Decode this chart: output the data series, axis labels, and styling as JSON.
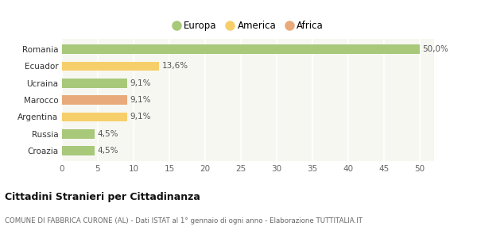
{
  "categories": [
    "Croazia",
    "Russia",
    "Argentina",
    "Marocco",
    "Ucraina",
    "Ecuador",
    "Romania"
  ],
  "values": [
    4.5,
    4.5,
    9.1,
    9.1,
    9.1,
    13.6,
    50.0
  ],
  "labels": [
    "4,5%",
    "4,5%",
    "9,1%",
    "9,1%",
    "9,1%",
    "13,6%",
    "50,0%"
  ],
  "colors": [
    "#a8c87a",
    "#a8c87a",
    "#f7cf6a",
    "#e8aa7a",
    "#a8c87a",
    "#f7cf6a",
    "#a8c87a"
  ],
  "legend": [
    {
      "label": "Europa",
      "color": "#a8c87a"
    },
    {
      "label": "America",
      "color": "#f7cf6a"
    },
    {
      "label": "Africa",
      "color": "#e8aa7a"
    }
  ],
  "xlim": [
    0,
    52
  ],
  "xticks": [
    0,
    5,
    10,
    15,
    20,
    25,
    30,
    35,
    40,
    45,
    50
  ],
  "title": "Cittadini Stranieri per Cittadinanza",
  "subtitle": "COMUNE DI FABBRICA CURONE (AL) - Dati ISTAT al 1° gennaio di ogni anno - Elaborazione TUTTITALIA.IT",
  "bg_color": "#ffffff",
  "bar_bg_color": "#f7f7f2",
  "grid_color": "#ffffff"
}
